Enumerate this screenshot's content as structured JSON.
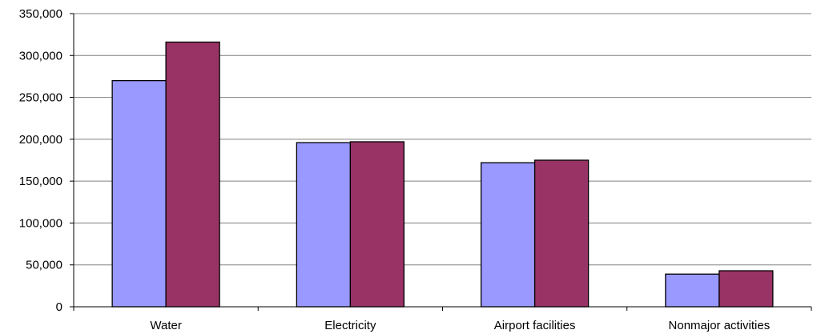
{
  "chart_data": {
    "type": "bar",
    "title": "",
    "xlabel": "",
    "ylabel": "",
    "categories": [
      "Water",
      "Electricity",
      "Airport facilities",
      "Nonmajor activities"
    ],
    "series": [
      {
        "values": [
          270000,
          196000,
          172000,
          39000
        ],
        "color": "#9999ff"
      },
      {
        "values": [
          316000,
          197000,
          175000,
          43000
        ],
        "color": "#993366"
      }
    ],
    "ylim": [
      0,
      350000
    ],
    "yticks": [
      0,
      50000,
      100000,
      150000,
      200000,
      250000,
      300000,
      350000
    ],
    "ytick_labels": [
      "0",
      "50,000",
      "100,000",
      "150,000",
      "200,000",
      "250,000",
      "300,000",
      "350,000"
    ],
    "grid": true,
    "legend": "none"
  }
}
